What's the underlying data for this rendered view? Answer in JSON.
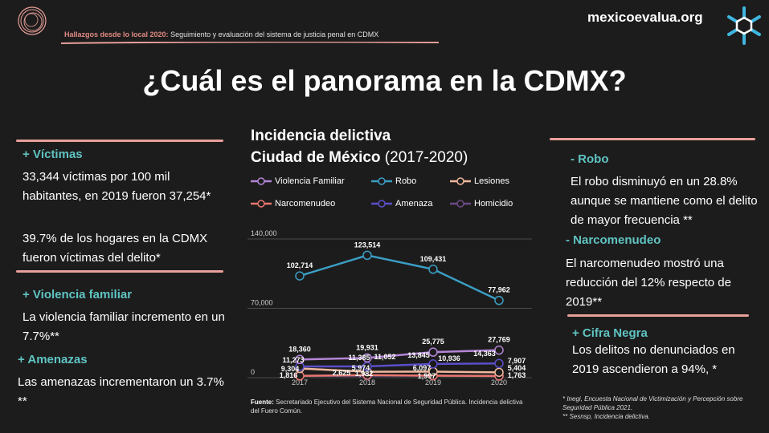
{
  "header": {
    "subtitle_highlight": "Hallazgos desde lo local 2020:",
    "subtitle_rest": " Seguimiento y evaluación del sistema de justicia penal en CDMX",
    "brand": "mexicoevalua.org"
  },
  "title": "¿Cuál es el panorama en la CDMX?",
  "left": {
    "victimas_head": "+ Víctimas",
    "victimas_text1": "33,344 víctimas por 100 mil habitantes, en 2019 fueron 37,254*",
    "victimas_text2": "39.7% de los hogares en la CDMX fueron víctimas del delito*",
    "violencia_head": "+ Violencia familiar",
    "violencia_text": "La violencia familiar incremento en un 7.7%**",
    "amenazas_head": "+ Amenazas",
    "amenazas_text": "Las amenazas incrementaron un 3.7% **"
  },
  "right": {
    "robo_head": "- Robo",
    "robo_text": "El robo disminuyó en un 28.8% aunque se mantiene como el delito de mayor frecuencia **",
    "narco_head": "- Narcomenudeo",
    "narco_text": "El narcomenudeo mostró una reducción del 12% respecto de 2019**",
    "cifra_head": "+ Cifra Negra",
    "cifra_text": "Los delitos no denunciados en 2019 ascendieron a 94%, *"
  },
  "chart_title_line1": "Incidencia delictiva",
  "chart_title_line2_bold": "Ciudad de México",
  "chart_title_line2_light": " (2017-2020)",
  "source_bold": "Fuente:",
  "source_text": " Secretariado Ejecutivo del Sistema Nacional de Seguridad Pública. Incidencia delictiva del Fuero Común.",
  "footnote_line1": "* Inegi, Encuesta Nacional de Victimización y Percepción sobre Seguridad Pública 2021.",
  "footnote_line2": "** Sesnsp, Incidencia delictiva.",
  "colors": {
    "violencia_familiar": "#b486d8",
    "robo": "#3a9ec4",
    "lesiones": "#f0b89e",
    "narcomenudeo": "#e8766f",
    "amenaza": "#5a4fc9",
    "homicidio": "#6b4a86",
    "accent_teal": "#5fc4c3",
    "accent_pink": "#e8a09a"
  },
  "chart_data": {
    "type": "line",
    "x": [
      "2017",
      "2018",
      "2019",
      "2020"
    ],
    "ytick_labels": [
      "0",
      "70,000",
      "140,000"
    ],
    "yticks": [
      0,
      70000,
      140000
    ],
    "ylim": [
      0,
      140000
    ],
    "series": [
      {
        "name": "Violencia Familiar",
        "values": [
          18360,
          19931,
          25775,
          27769
        ],
        "labels": [
          "18,360",
          "19,931",
          "25,775",
          "27,769"
        ]
      },
      {
        "name": "Robo",
        "values": [
          102714,
          123514,
          109431,
          77962
        ],
        "labels": [
          "102,714",
          "123,514",
          "109,431",
          "77,962"
        ]
      },
      {
        "name": "Lesiones",
        "values": [
          9304,
          5974,
          6097,
          5404
        ],
        "labels": [
          "9,304",
          "5,974",
          "6,097",
          "5,404"
        ]
      },
      {
        "name": "Narcomenudeo",
        "values": [
          1816,
          2625,
          1997,
          1763
        ],
        "labels": [
          "1,816",
          "2,625",
          "1,997",
          "1,763"
        ]
      },
      {
        "name": "Amenaza",
        "values": [
          11273,
          11385,
          13845,
          14363
        ],
        "labels": [
          "11,273",
          "11,385",
          "13,845",
          "14,363"
        ]
      },
      {
        "name": "Homicidio",
        "values": [
          1816,
          1982,
          1997,
          1763
        ],
        "labels": [
          "",
          "1,982",
          "",
          ""
        ]
      }
    ],
    "extra_labels": [
      "11,052",
      "10,936",
      "7,907"
    ],
    "legend": "top, two rows",
    "grid": true
  }
}
